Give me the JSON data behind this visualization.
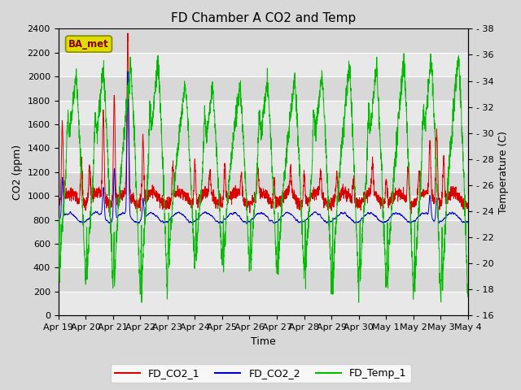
{
  "title": "FD Chamber A CO2 and Temp",
  "xlabel": "Time",
  "ylabel_left": "CO2 (ppm)",
  "ylabel_right": "Temperature (C)",
  "ylim_left": [
    0,
    2400
  ],
  "ylim_right": [
    16,
    38
  ],
  "yticks_left": [
    0,
    200,
    400,
    600,
    800,
    1000,
    1200,
    1400,
    1600,
    1800,
    2000,
    2200,
    2400
  ],
  "yticks_right": [
    16,
    18,
    20,
    22,
    24,
    26,
    28,
    30,
    32,
    34,
    36,
    38
  ],
  "xtick_labels": [
    "Apr 19",
    "Apr 20",
    "Apr 21",
    "Apr 22",
    "Apr 23",
    "Apr 24",
    "Apr 25",
    "Apr 26",
    "Apr 27",
    "Apr 28",
    "Apr 29",
    "Apr 30",
    "May 1",
    "May 2",
    "May 3",
    "May 4"
  ],
  "color_co2_1": "#dd0000",
  "color_co2_2": "#0000cc",
  "color_temp": "#00bb00",
  "legend_labels": [
    "FD_CO2_1",
    "FD_CO2_2",
    "FD_Temp_1"
  ],
  "annotation_text": "BA_met",
  "annotation_box_facecolor": "#dddd00",
  "annotation_box_edgecolor": "#888800",
  "annotation_text_color": "#880000",
  "bg_color": "#d8d8d8",
  "plot_bg_light": "#e8e8e8",
  "plot_bg_dark": "#d8d8d8",
  "title_fontsize": 11,
  "axis_fontsize": 9,
  "tick_fontsize": 8,
  "legend_fontsize": 9
}
